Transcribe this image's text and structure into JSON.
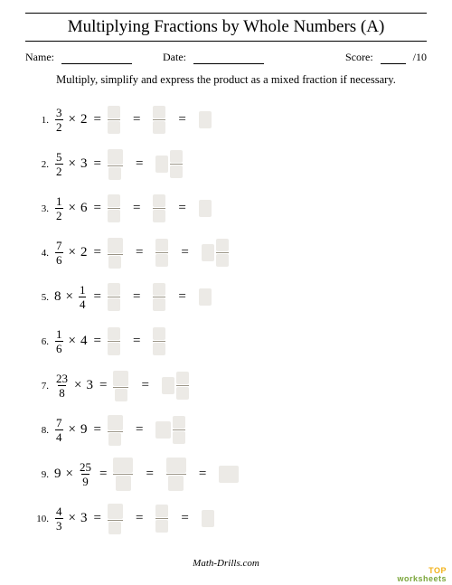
{
  "title": "Multiplying Fractions by Whole Numbers (A)",
  "meta": {
    "name_label": "Name:",
    "date_label": "Date:",
    "score_label": "Score:",
    "score_total": "/10",
    "name_blank_width": 78,
    "date_blank_width": 78,
    "score_blank_width": 28
  },
  "instructions": "Multiply, simplify and express the product as a mixed fraction if necessary.",
  "footer": "Math-Drills.com",
  "watermark_top": "TOP",
  "watermark_bottom": "worksheets",
  "box_colors": {
    "bg": "#eceae6",
    "bar": "#9a9486"
  },
  "cell_sizes": {
    "small": {
      "w": 14,
      "h": 14
    },
    "med": {
      "w": 17,
      "h": 17
    },
    "tall": {
      "w": 14,
      "h": 19
    },
    "medtall": {
      "w": 17,
      "h": 19
    },
    "wide": {
      "w": 22,
      "h": 17
    },
    "widetall": {
      "w": 22,
      "h": 19
    }
  },
  "problems": [
    {
      "n": "1.",
      "left": {
        "type": "frac",
        "num": "3",
        "den": "2"
      },
      "right": {
        "type": "whole",
        "val": "2"
      },
      "steps": [
        {
          "type": "frac",
          "top": "small",
          "bot": "small"
        },
        {
          "type": "frac",
          "top": "small",
          "bot": "small"
        },
        {
          "type": "whole",
          "size": "tall"
        }
      ]
    },
    {
      "n": "2.",
      "left": {
        "type": "frac",
        "num": "5",
        "den": "2"
      },
      "right": {
        "type": "whole",
        "val": "3"
      },
      "steps": [
        {
          "type": "frac",
          "top": "med",
          "bot": "small"
        },
        {
          "type": "mixed",
          "whole": "tall",
          "top": "small",
          "bot": "small"
        }
      ]
    },
    {
      "n": "3.",
      "left": {
        "type": "frac",
        "num": "1",
        "den": "2"
      },
      "right": {
        "type": "whole",
        "val": "6"
      },
      "steps": [
        {
          "type": "frac",
          "top": "small",
          "bot": "small"
        },
        {
          "type": "frac",
          "top": "small",
          "bot": "small"
        },
        {
          "type": "whole",
          "size": "tall"
        }
      ]
    },
    {
      "n": "4.",
      "left": {
        "type": "frac",
        "num": "7",
        "den": "6"
      },
      "right": {
        "type": "whole",
        "val": "2"
      },
      "steps": [
        {
          "type": "frac",
          "top": "med",
          "bot": "small"
        },
        {
          "type": "frac",
          "top": "small",
          "bot": "small"
        },
        {
          "type": "mixed",
          "whole": "tall",
          "top": "small",
          "bot": "small"
        }
      ]
    },
    {
      "n": "5.",
      "left": {
        "type": "whole",
        "val": "8"
      },
      "right": {
        "type": "frac",
        "num": "1",
        "den": "4"
      },
      "steps": [
        {
          "type": "frac",
          "top": "small",
          "bot": "small"
        },
        {
          "type": "frac",
          "top": "small",
          "bot": "small"
        },
        {
          "type": "whole",
          "size": "tall"
        }
      ]
    },
    {
      "n": "6.",
      "left": {
        "type": "frac",
        "num": "1",
        "den": "6"
      },
      "right": {
        "type": "whole",
        "val": "4"
      },
      "steps": [
        {
          "type": "frac",
          "top": "small",
          "bot": "small"
        },
        {
          "type": "frac",
          "top": "small",
          "bot": "small"
        }
      ]
    },
    {
      "n": "7.",
      "left": {
        "type": "frac",
        "num": "23",
        "den": "8"
      },
      "right": {
        "type": "whole",
        "val": "3"
      },
      "steps": [
        {
          "type": "frac",
          "top": "med",
          "bot": "small"
        },
        {
          "type": "mixed",
          "whole": "tall",
          "top": "small",
          "bot": "small"
        }
      ]
    },
    {
      "n": "8.",
      "left": {
        "type": "frac",
        "num": "7",
        "den": "4"
      },
      "right": {
        "type": "whole",
        "val": "9"
      },
      "steps": [
        {
          "type": "frac",
          "top": "med",
          "bot": "small"
        },
        {
          "type": "mixed",
          "whole": "medtall",
          "top": "small",
          "bot": "small"
        }
      ]
    },
    {
      "n": "9.",
      "left": {
        "type": "whole",
        "val": "9"
      },
      "right": {
        "type": "frac",
        "num": "25",
        "den": "9"
      },
      "steps": [
        {
          "type": "frac",
          "top": "wide",
          "bot": "med"
        },
        {
          "type": "frac",
          "top": "wide",
          "bot": "med"
        },
        {
          "type": "whole",
          "size": "widetall"
        }
      ]
    },
    {
      "n": "10.",
      "left": {
        "type": "frac",
        "num": "4",
        "den": "3"
      },
      "right": {
        "type": "whole",
        "val": "3"
      },
      "steps": [
        {
          "type": "frac",
          "top": "med",
          "bot": "small"
        },
        {
          "type": "frac",
          "top": "small",
          "bot": "small"
        },
        {
          "type": "whole",
          "size": "tall"
        }
      ]
    }
  ]
}
